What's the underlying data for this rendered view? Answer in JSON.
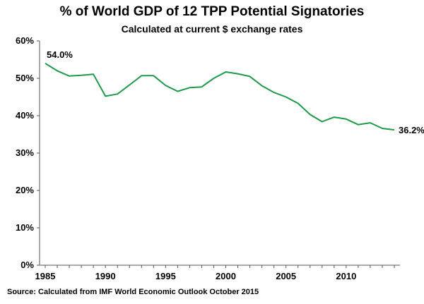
{
  "chart_data": {
    "type": "line",
    "title": "% of World GDP of 12 TPP Potential Signatories",
    "subtitle": "Calculated at current $ exchange rates",
    "source": "Source: Calculated from IMF World Economic Outlook October 2015",
    "xlabel": "",
    "ylabel": "",
    "xlim": [
      1985,
      2014
    ],
    "ylim": [
      0,
      60
    ],
    "x_ticks": [
      1985,
      1990,
      1995,
      2000,
      2005,
      2010
    ],
    "y_ticks": [
      0,
      10,
      20,
      30,
      40,
      50,
      60
    ],
    "y_tick_labels": [
      "0%",
      "10%",
      "20%",
      "30%",
      "40%",
      "50%",
      "60%"
    ],
    "grid": false,
    "line_color": "#1f9a4a",
    "x": [
      1985,
      1986,
      1987,
      1988,
      1989,
      1990,
      1991,
      1992,
      1993,
      1994,
      1995,
      1996,
      1997,
      1998,
      1999,
      2000,
      2001,
      2002,
      2003,
      2004,
      2005,
      2006,
      2007,
      2008,
      2009,
      2010,
      2011,
      2012,
      2013,
      2014
    ],
    "y": [
      54.0,
      52.0,
      50.6,
      50.8,
      51.1,
      45.2,
      45.8,
      48.2,
      50.7,
      50.7,
      48.1,
      46.5,
      47.5,
      47.7,
      50.0,
      51.7,
      51.2,
      50.5,
      48.0,
      46.2,
      45.0,
      43.3,
      40.3,
      38.4,
      39.6,
      39.1,
      37.6,
      38.1,
      36.6,
      36.2
    ],
    "annotations": [
      {
        "text": "54.0%",
        "x": 1985,
        "y": 54.0,
        "anchor": "start-label"
      },
      {
        "text": "36.2%",
        "x": 2014,
        "y": 36.2,
        "anchor": "end-label"
      }
    ]
  }
}
